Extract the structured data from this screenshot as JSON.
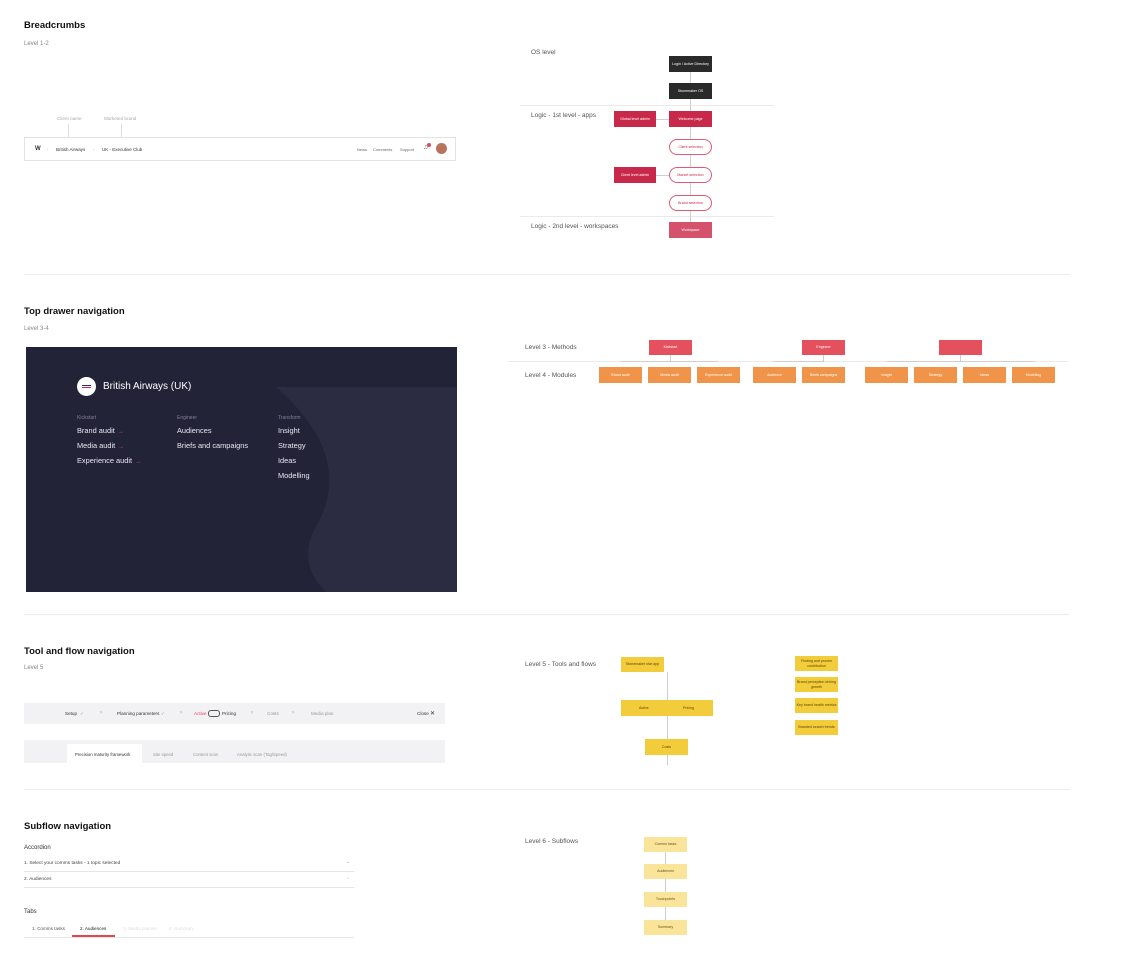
{
  "sections": {
    "breadcrumbs": {
      "title": "Breadcrumbs",
      "sub": "Level 1-2",
      "annotations": [
        "Client name",
        "Marketed brand"
      ],
      "bar": {
        "logo": "W",
        "client": "British Airways",
        "brand": "UK - Executive Club",
        "links": [
          "News",
          "Comments",
          "Support"
        ]
      }
    },
    "os_flow": {
      "os_level": "OS level",
      "logic1": "Logic - 1st level - apps",
      "logic2": "Logic - 2nd level - workspaces",
      "nodes": {
        "login": "Login / Active Directory",
        "os": "Stonemaker OS",
        "global_admin": "Global level admin",
        "welcome": "Welcome page",
        "client_select": "Client selection",
        "client_admin": "Client level admin",
        "market_select": "Market selection",
        "brand_select": "Brand selection",
        "workspace": "Workspace"
      }
    },
    "top_drawer": {
      "title": "Top drawer navigation",
      "sub": "Level 3-4",
      "brand": "British Airways (UK)",
      "columns": [
        {
          "head": "Kickstart",
          "items": [
            "Brand audit",
            "Media audit",
            "Experience audit"
          ],
          "arrows": true
        },
        {
          "head": "Engineer",
          "items": [
            "Audiences",
            "Briefs and campaigns"
          ],
          "arrows": false
        },
        {
          "head": "Transform",
          "items": [
            "Insight",
            "Strategy",
            "Ideas",
            "Modelling"
          ],
          "arrows": false
        }
      ],
      "arrow": "→"
    },
    "methods": {
      "level3": "Level 3 - Methods",
      "level4": "Level 4 - Modules",
      "m1": "Kickstart",
      "m2": "Engineer",
      "m3": "",
      "modules": [
        "Brand audit",
        "Media audit",
        "Experience audit",
        "Audience",
        "Briefs campaigns",
        "Insight",
        "Strategy",
        "Ideas",
        "Modelling"
      ]
    },
    "tool_flow": {
      "title": "Tool and flow navigation",
      "sub": "Level 5",
      "steps": [
        "Setup",
        "Planning parameters",
        "Active",
        "Pricing",
        "Costs",
        "Media plan"
      ],
      "check": "✓",
      "chev": "›",
      "close": "Close",
      "close_x": "✕",
      "tabs": [
        "Precision maturity framework",
        "Site speed",
        "Content scan",
        "Analytic scan (Tag/Speed)"
      ]
    },
    "tools": {
      "level5": "Level 5 - Tools and flows",
      "nodes": [
        "Stonemaker star app",
        "Active",
        "Pricing",
        "Costs"
      ],
      "side": [
        "Finding and proven contribution",
        "Brand perception driving growth",
        "Key brand health metrics",
        "Branded search trends"
      ]
    },
    "subflow": {
      "title": "Subflow navigation",
      "acc_title": "Accordion",
      "acc_rows": [
        "1. Select your comms tasks - 1 topic selected",
        "2. Audiences"
      ],
      "tabs_title": "Tabs",
      "tabs": [
        "1. Comms tasks",
        "2. Audiences",
        "3. Media planner",
        "4. Summary"
      ],
      "level6": "Level 6 - Subflows",
      "nodes": [
        "Comms tasks",
        "Audiences",
        "Touchpoints",
        "Summary"
      ]
    }
  }
}
